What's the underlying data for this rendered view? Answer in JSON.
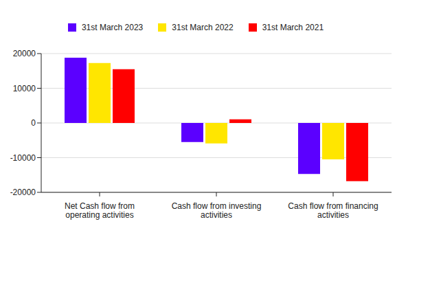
{
  "chart_data": {
    "type": "bar",
    "categories": [
      "Net Cash flow from operating activities",
      "Cash flow from investing activities",
      "Cash flow from financing activities"
    ],
    "series": [
      {
        "name": "31st March 2023",
        "color": "#5b00ff",
        "values": [
          18800,
          -5500,
          -14700
        ]
      },
      {
        "name": "31st March 2022",
        "color": "#ffe600",
        "values": [
          17300,
          -5900,
          -10500
        ]
      },
      {
        "name": "31st March 2021",
        "color": "#ff0000",
        "values": [
          15500,
          1050,
          -16800
        ]
      }
    ],
    "ylim": [
      -20000,
      20000
    ],
    "yticks": [
      -20000,
      -10000,
      0,
      10000,
      20000
    ],
    "grid": true,
    "legend": "top"
  }
}
